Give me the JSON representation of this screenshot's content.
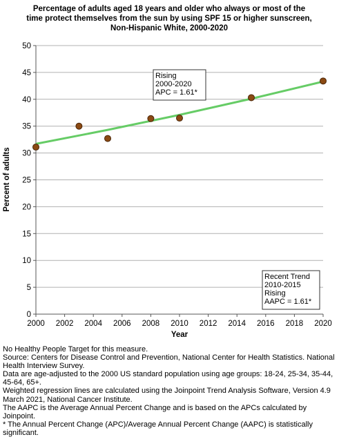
{
  "chart_data": {
    "type": "line",
    "title_lines": [
      "Percentage of adults aged 18 years and older who always or most of the",
      "time protect themselves from the sun by using SPF 15 or higher sunscreen,",
      "Non-Hispanic White,  2000-2020"
    ],
    "xlabel": "Year",
    "ylabel": "Percent of adults",
    "xlim": [
      2000,
      2020
    ],
    "ylim": [
      0,
      50
    ],
    "x_ticks": [
      2000,
      2002,
      2004,
      2006,
      2008,
      2010,
      2012,
      2014,
      2016,
      2018,
      2020
    ],
    "y_ticks": [
      0,
      5,
      10,
      15,
      20,
      25,
      30,
      35,
      40,
      45,
      50
    ],
    "grid": "horizontal",
    "points": {
      "x": [
        2000,
        2003,
        2005,
        2008,
        2010,
        2015,
        2020
      ],
      "y": [
        31.1,
        35.0,
        32.7,
        36.4,
        36.5,
        40.3,
        43.4
      ]
    },
    "trend_line": {
      "x": [
        2000,
        2005,
        2010,
        2015,
        2020
      ],
      "y": [
        31.7,
        34.3,
        37.1,
        40.1,
        43.3
      ]
    },
    "colors": {
      "point_fill": "#8b4a13",
      "point_stroke": "#4a2508",
      "trend_line": "#66cc66",
      "grid": "#b0b0b0"
    },
    "annotations": [
      {
        "lines": [
          "Rising",
          "2000-2020",
          "APC =  1.61*"
        ]
      },
      {
        "lines": [
          "Recent Trend",
          "2010-2015",
          "Rising",
          "AAPC =  1.61*"
        ]
      }
    ]
  },
  "notes": [
    "No Healthy People Target for this measure.",
    "Source: Centers for Disease Control and Prevention, National Center for Health Statistics. National Health Interview Survey.",
    "Data are age-adjusted to the 2000 US standard population using age groups: 18-24, 25-34, 35-44, 45-64, 65+.",
    "Weighted regression lines are calculated using the Joinpoint Trend Analysis Software, Version 4.9 March 2021, National Cancer Institute.",
    "The AAPC is the Average Annual Percent Change and is based on the APCs calculated by Joinpoint.",
    "* The Annual Percent Change (APC)/Average Annual Percent Change (AAPC) is statistically significant."
  ]
}
